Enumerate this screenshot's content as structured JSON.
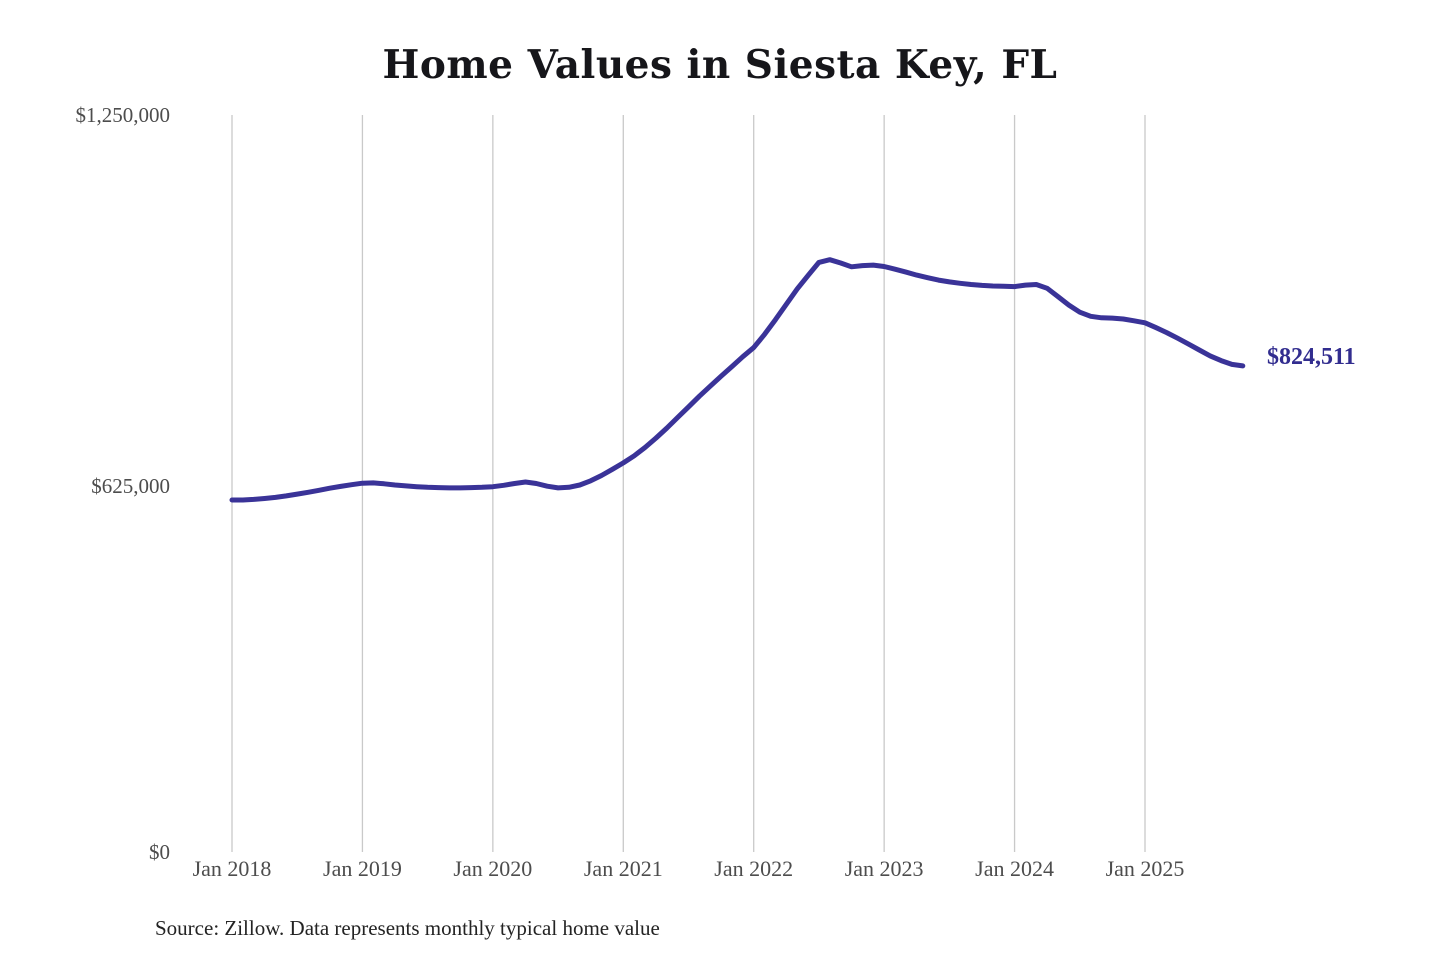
{
  "chart_data": {
    "type": "line",
    "title": "Home Values in Siesta Key, FL",
    "source": "Source: Zillow. Data represents monthly typical home value",
    "xlabel": "",
    "ylabel": "",
    "ylim": [
      0,
      1250000
    ],
    "grid": "vertical-only",
    "legend": "none",
    "frequency": "monthly",
    "start_month": "2018-01",
    "end_month": "2025-10",
    "x_ticks": [
      {
        "label": "Jan 2018",
        "month_index": 0
      },
      {
        "label": "Jan 2019",
        "month_index": 12
      },
      {
        "label": "Jan 2020",
        "month_index": 24
      },
      {
        "label": "Jan 2021",
        "month_index": 36
      },
      {
        "label": "Jan 2022",
        "month_index": 48
      },
      {
        "label": "Jan 2023",
        "month_index": 60
      },
      {
        "label": "Jan 2024",
        "month_index": 72
      },
      {
        "label": "Jan 2025",
        "month_index": 84
      }
    ],
    "y_ticks": [
      {
        "label": "$0",
        "value": 0
      },
      {
        "label": "$625,000",
        "value": 625000
      },
      {
        "label": "$1,250,000",
        "value": 1250000
      }
    ],
    "series": [
      {
        "name": "Monthly typical home value",
        "values": [
          597000,
          597000,
          598000,
          599500,
          601500,
          604000,
          607000,
          610000,
          613500,
          617000,
          620000,
          623000,
          625500,
          626000,
          624500,
          622500,
          621000,
          619500,
          618500,
          618000,
          617500,
          617500,
          618000,
          618500,
          619500,
          622000,
          625000,
          627500,
          625000,
          620500,
          617500,
          618500,
          622500,
          629500,
          638500,
          649000,
          660000,
          672000,
          686000,
          702000,
          719000,
          737000,
          755000,
          773000,
          790000,
          807000,
          823500,
          840000,
          855500,
          878000,
          903000,
          929000,
          955000,
          978000,
          1000000,
          1004500,
          999000,
          992500,
          994500,
          995500,
          993000,
          988500,
          983500,
          978500,
          974000,
          970000,
          967000,
          964500,
          962500,
          961000,
          960000,
          959500,
          959000,
          961500,
          962500,
          956000,
          942000,
          927500,
          915500,
          908500,
          906000,
          905500,
          904000,
          901000,
          897500,
          889500,
          881000,
          871500,
          861500,
          851500,
          841500,
          833500,
          827000,
          824511
        ]
      }
    ],
    "final_value": 824511,
    "final_value_label": "$824,511",
    "line_color": "#3a3398",
    "end_label_color": "#322d8f",
    "gridline_color": "#c9c9c9"
  }
}
